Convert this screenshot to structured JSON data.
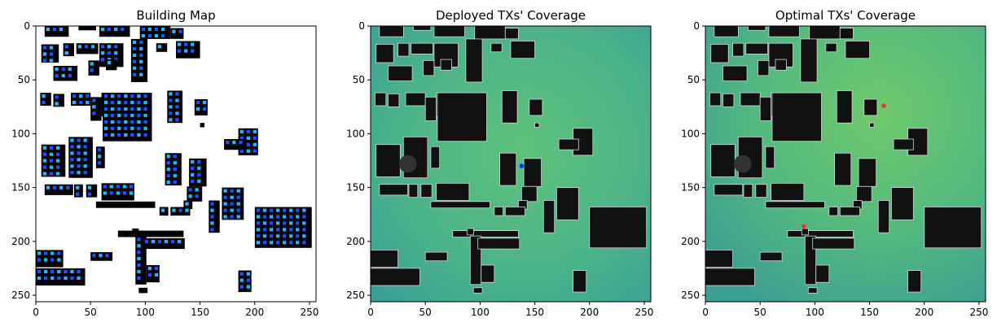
{
  "chart_data": [
    {
      "type": "heatmap",
      "title": "Building Map",
      "xlim": [
        0,
        256
      ],
      "ylim": [
        256,
        0
      ],
      "xticks": [
        "0",
        "50",
        "100",
        "150",
        "200",
        "250"
      ],
      "yticks": [
        "0",
        "50",
        "100",
        "150",
        "200",
        "250"
      ],
      "background": "#ffffff",
      "building_color": "#000000",
      "marker_colors": [
        "#1f4fff",
        "#29b6f6"
      ],
      "markers": []
    },
    {
      "type": "heatmap",
      "title": "Deployed TXs' Coverage",
      "xlim": [
        0,
        256
      ],
      "ylim": [
        256,
        0
      ],
      "xticks": [
        "0",
        "50",
        "100",
        "150",
        "200",
        "250"
      ],
      "yticks": [
        "0",
        "50",
        "100",
        "150",
        "200",
        "250"
      ],
      "background": "#4fb88a",
      "building_color": "#111111",
      "markers": [
        {
          "x": 138,
          "y": 130,
          "color": "#1a2cff"
        }
      ]
    },
    {
      "type": "heatmap",
      "title": "Optimal TXs' Coverage",
      "xlim": [
        0,
        256
      ],
      "ylim": [
        256,
        0
      ],
      "xticks": [
        "0",
        "50",
        "100",
        "150",
        "200",
        "250"
      ],
      "yticks": [
        "0",
        "50",
        "100",
        "150",
        "200",
        "250"
      ],
      "background": "#53bb7f",
      "building_color": "#111111",
      "markers": [
        {
          "x": 163,
          "y": 74,
          "color": "#e53935"
        },
        {
          "x": 90,
          "y": 186,
          "color": "#e53935"
        }
      ]
    }
  ]
}
